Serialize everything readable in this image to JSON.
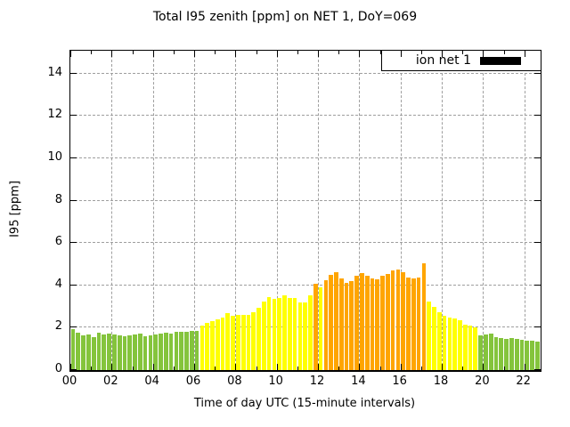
{
  "title": "Total I95 zenith [ppm] on NET 1, DoY=069",
  "legend": {
    "label": "ion net 1",
    "swatch_color": "#000000"
  },
  "axes": {
    "xlabel": "Time of day UTC (15-minute intervals)",
    "ylabel": "I95 [ppm]",
    "x_tick_labels": [
      "00",
      "02",
      "04",
      "06",
      "08",
      "10",
      "12",
      "14",
      "16",
      "18",
      "20",
      "22"
    ],
    "x_tick_hours": [
      0,
      2,
      4,
      6,
      8,
      10,
      12,
      14,
      16,
      18,
      20,
      22
    ],
    "y_tick_labels": [
      "0",
      "2",
      "4",
      "6",
      "8",
      "10",
      "12",
      "14"
    ],
    "y_tick_values": [
      0,
      2,
      4,
      6,
      8,
      10,
      12,
      14
    ],
    "x_range_hours": [
      0,
      22.79
    ],
    "y_range_ppm": [
      0,
      15.08
    ],
    "grid": "dashed gray at major ticks"
  },
  "colors": {
    "bar_low": "#84c43c",
    "bar_mid": "#ffff00",
    "bar_high": "#ffa500",
    "grid": "#9e9e9e",
    "threshold_low_max_ppm": 2.0,
    "threshold_mid_max_ppm": 4.0
  },
  "chart_data": {
    "type": "bar",
    "title": "Total I95 zenith [ppm] on NET 1, DoY=069",
    "xlabel": "Time of day UTC (15-minute intervals)",
    "ylabel": "I95 [ppm]",
    "series_name": "ion net 1",
    "interval_minutes": 15,
    "ylim": [
      0,
      15.08
    ],
    "color_rule": "value < 2 green, 2 <= value <= 4 yellow, value > 4 orange",
    "x": [
      "00:00",
      "00:15",
      "00:30",
      "00:45",
      "01:00",
      "01:15",
      "01:30",
      "01:45",
      "02:00",
      "02:15",
      "02:30",
      "02:45",
      "03:00",
      "03:15",
      "03:30",
      "03:45",
      "04:00",
      "04:15",
      "04:30",
      "04:45",
      "05:00",
      "05:15",
      "05:30",
      "05:45",
      "06:00",
      "06:15",
      "06:30",
      "06:45",
      "07:00",
      "07:15",
      "07:30",
      "07:45",
      "08:00",
      "08:15",
      "08:30",
      "08:45",
      "09:00",
      "09:15",
      "09:30",
      "09:45",
      "10:00",
      "10:15",
      "10:30",
      "10:45",
      "11:00",
      "11:15",
      "11:30",
      "11:45",
      "12:00",
      "12:15",
      "12:30",
      "12:45",
      "13:00",
      "13:15",
      "13:30",
      "13:45",
      "14:00",
      "14:15",
      "14:30",
      "14:45",
      "15:00",
      "15:15",
      "15:30",
      "15:45",
      "16:00",
      "16:15",
      "16:30",
      "16:45",
      "17:00",
      "17:15",
      "17:30",
      "17:45",
      "18:00",
      "18:15",
      "18:30",
      "18:45",
      "19:00",
      "19:15",
      "19:30",
      "19:45",
      "20:00",
      "20:15",
      "20:30",
      "20:45",
      "21:00",
      "21:15",
      "21:30",
      "21:45",
      "22:00",
      "22:15",
      "22:30"
    ],
    "values": [
      1.92,
      1.75,
      1.63,
      1.69,
      1.57,
      1.75,
      1.69,
      1.72,
      1.66,
      1.63,
      1.6,
      1.63,
      1.69,
      1.72,
      1.6,
      1.63,
      1.66,
      1.72,
      1.75,
      1.72,
      1.82,
      1.82,
      1.8,
      1.84,
      1.86,
      2.11,
      2.21,
      2.31,
      2.38,
      2.48,
      2.68,
      2.57,
      2.62,
      2.59,
      2.62,
      2.72,
      2.94,
      3.23,
      3.45,
      3.38,
      3.42,
      3.55,
      3.42,
      3.42,
      3.2,
      3.2,
      3.52,
      4.06,
      3.92,
      4.25,
      4.51,
      4.64,
      4.32,
      4.13,
      4.22,
      4.47,
      4.57,
      4.47,
      4.32,
      4.28,
      4.44,
      4.54,
      4.69,
      4.76,
      4.61,
      4.37,
      4.32,
      4.37,
      5.06,
      3.23,
      2.98,
      2.72,
      2.55,
      2.47,
      2.42,
      2.35,
      2.14,
      2.1,
      2.02,
      1.63,
      1.67,
      1.73,
      1.56,
      1.5,
      1.48,
      1.52,
      1.46,
      1.44,
      1.4,
      1.38,
      1.36
    ]
  }
}
